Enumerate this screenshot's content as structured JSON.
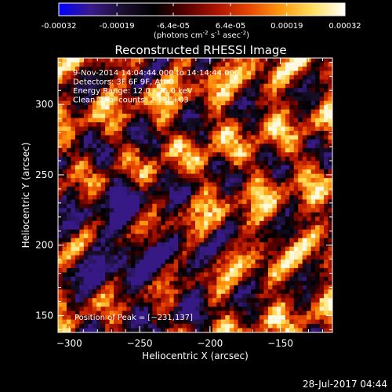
{
  "colorbar": {
    "tick_labels": [
      "-0.00032",
      "-0.00019",
      "-6.4e-05",
      "6.4e-05",
      "0.00019",
      "0.00032"
    ],
    "tick_values": [
      -0.00032,
      -0.00019,
      -6.4e-05,
      6.4e-05,
      0.00019,
      0.00032
    ],
    "range": [
      -0.00032,
      0.00032
    ],
    "units_prefix": "(photons cm",
    "units_exp1": "-2",
    "units_mid1": " s",
    "units_exp2": "-1",
    "units_mid2": " asec",
    "units_exp3": "-2",
    "units_suffix": ")",
    "stops": [
      "#0000ff",
      "#3a1a8c",
      "#1a1030",
      "#000000",
      "#5a0000",
      "#b01400",
      "#e84800",
      "#ff9a10",
      "#ffe060",
      "#ffffff"
    ]
  },
  "chart_data": {
    "type": "heatmap",
    "title": "Reconstructed RHESSI Image",
    "xlabel": "Heliocentric X (arcsec)",
    "ylabel": "Heliocentric Y (arcsec)",
    "xlim": [
      -308,
      -113
    ],
    "ylim": [
      138,
      333
    ],
    "xticks": [
      -300,
      -250,
      -200,
      -150
    ],
    "xtick_labels": [
      "−300",
      "−250",
      "−200",
      "−150"
    ],
    "yticks": [
      150,
      200,
      250,
      300
    ],
    "ytick_labels": [
      "150",
      "200",
      "250",
      "300"
    ],
    "info_lines": [
      "9-Nov-2014 14:04:44.000 to 14:14:44.000",
      "Detectors: 3F 6F 9F, Att 0",
      "Energy Range: 12.0 - 25.0 keV",
      "Clean     Total counts: 2.13E+03"
    ],
    "peak_label": "Position of Peak = [−231,137]",
    "peak_position": [
      -231,
      137
    ]
  },
  "footer": {
    "timestamp": "28-Jul-2017 04:44"
  }
}
